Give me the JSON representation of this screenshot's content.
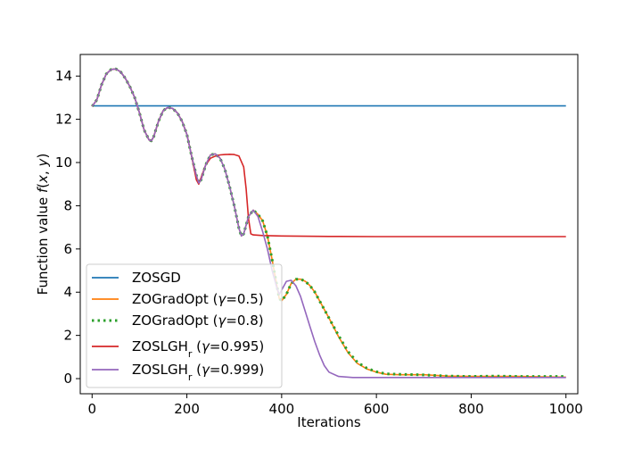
{
  "chart_data": {
    "type": "line",
    "xlabel": "Iterations",
    "ylabel": "Function value f(x, y)",
    "xlim": [
      -25,
      1025
    ],
    "ylim": [
      -0.7,
      15.0
    ],
    "xticks": [
      0,
      200,
      400,
      600,
      800,
      1000
    ],
    "yticks": [
      0,
      2,
      4,
      6,
      8,
      10,
      12,
      14
    ],
    "xtick_labels": [
      "0",
      "200",
      "400",
      "600",
      "800",
      "1000"
    ],
    "ytick_labels": [
      "0",
      "2",
      "4",
      "6",
      "8",
      "10",
      "12",
      "14"
    ],
    "grid": false,
    "legend_position": "lower-left",
    "legend": [
      {
        "label": "ZOSGD",
        "color": "#1f77b4",
        "style": "solid"
      },
      {
        "label": "ZOGradOpt (γ=0.5)",
        "color": "#ff7f0e",
        "style": "solid"
      },
      {
        "label": "ZOGradOpt (γ=0.8)",
        "color": "#2ca02c",
        "style": "dotted"
      },
      {
        "label": "ZOSLGHr (γ=0.995)",
        "color": "#d62728",
        "style": "solid"
      },
      {
        "label": "ZOSLGHr (γ=0.999)",
        "color": "#9467bd",
        "style": "solid"
      }
    ],
    "series": [
      {
        "name": "ZOSGD",
        "color": "#1f77b4",
        "style": "solid",
        "x": [
          0,
          1000
        ],
        "y": [
          12.62,
          12.62
        ]
      },
      {
        "name": "ZOGradOpt (γ=0.5)",
        "color": "#ff7f0e",
        "style": "solid",
        "x": [
          0,
          10,
          20,
          30,
          40,
          50,
          60,
          70,
          80,
          90,
          100,
          110,
          120,
          125,
          130,
          140,
          150,
          160,
          170,
          180,
          190,
          200,
          210,
          220,
          225,
          230,
          240,
          250,
          260,
          270,
          280,
          290,
          300,
          310,
          315,
          320,
          330,
          340,
          350,
          360,
          370,
          380,
          390,
          395,
          400,
          410,
          420,
          430,
          440,
          450,
          460,
          470,
          480,
          490,
          500,
          520,
          540,
          560,
          580,
          600,
          620,
          650,
          700,
          750,
          800,
          850,
          900,
          950,
          1000
        ],
        "y": [
          12.6,
          12.9,
          13.6,
          14.1,
          14.3,
          14.33,
          14.2,
          13.9,
          13.5,
          13.0,
          12.3,
          11.5,
          11.05,
          11.0,
          11.2,
          11.9,
          12.4,
          12.55,
          12.5,
          12.3,
          11.9,
          11.3,
          10.3,
          9.4,
          9.05,
          9.2,
          9.9,
          10.35,
          10.4,
          10.2,
          9.7,
          8.9,
          8.0,
          6.95,
          6.6,
          6.7,
          7.5,
          7.8,
          7.6,
          7.3,
          6.6,
          5.5,
          4.3,
          3.7,
          3.6,
          3.9,
          4.4,
          4.6,
          4.6,
          4.5,
          4.3,
          4.0,
          3.6,
          3.2,
          2.8,
          1.95,
          1.2,
          0.7,
          0.45,
          0.3,
          0.2,
          0.18,
          0.18,
          0.12,
          0.1,
          0.1,
          0.1,
          0.08,
          0.07
        ]
      },
      {
        "name": "ZOGradOpt (γ=0.8)",
        "color": "#2ca02c",
        "style": "dotted",
        "x": [
          0,
          10,
          20,
          30,
          40,
          50,
          60,
          70,
          80,
          90,
          100,
          110,
          120,
          125,
          130,
          140,
          150,
          160,
          170,
          180,
          190,
          200,
          210,
          220,
          225,
          230,
          240,
          250,
          260,
          270,
          280,
          290,
          300,
          310,
          315,
          320,
          330,
          340,
          350,
          360,
          370,
          380,
          390,
          395,
          400,
          410,
          420,
          430,
          440,
          450,
          460,
          470,
          480,
          490,
          500,
          520,
          540,
          560,
          580,
          600,
          620,
          650,
          700,
          750,
          800,
          850,
          900,
          950,
          1000
        ],
        "y": [
          12.6,
          12.9,
          13.6,
          14.1,
          14.3,
          14.33,
          14.2,
          13.9,
          13.5,
          13.0,
          12.3,
          11.5,
          11.05,
          11.0,
          11.2,
          11.9,
          12.4,
          12.55,
          12.5,
          12.3,
          11.9,
          11.3,
          10.3,
          9.4,
          9.05,
          9.2,
          9.9,
          10.35,
          10.4,
          10.2,
          9.7,
          8.9,
          8.0,
          6.95,
          6.6,
          6.7,
          7.5,
          7.8,
          7.6,
          7.3,
          6.6,
          5.5,
          4.3,
          3.7,
          3.6,
          3.9,
          4.4,
          4.6,
          4.6,
          4.5,
          4.3,
          4.0,
          3.6,
          3.2,
          2.8,
          2.0,
          1.25,
          0.75,
          0.48,
          0.32,
          0.22,
          0.2,
          0.17,
          0.12,
          0.1,
          0.12,
          0.1,
          0.1,
          0.1
        ]
      },
      {
        "name": "ZOSLGHr (γ=0.995)",
        "color": "#d62728",
        "style": "solid",
        "x": [
          0,
          10,
          20,
          30,
          40,
          50,
          60,
          70,
          80,
          90,
          100,
          110,
          120,
          125,
          130,
          140,
          150,
          160,
          170,
          180,
          190,
          200,
          210,
          220,
          225,
          230,
          240,
          250,
          260,
          270,
          280,
          290,
          300,
          310,
          320,
          325,
          330,
          335,
          340,
          360,
          400,
          500,
          600,
          700,
          800,
          900,
          1000
        ],
        "y": [
          12.6,
          12.9,
          13.6,
          14.1,
          14.3,
          14.33,
          14.2,
          13.9,
          13.5,
          13.0,
          12.3,
          11.5,
          11.05,
          11.0,
          11.2,
          11.9,
          12.4,
          12.55,
          12.5,
          12.3,
          11.9,
          11.3,
          10.3,
          9.2,
          9.0,
          9.3,
          9.9,
          10.2,
          10.3,
          10.35,
          10.37,
          10.38,
          10.37,
          10.3,
          9.8,
          8.8,
          7.4,
          6.7,
          6.65,
          6.62,
          6.6,
          6.58,
          6.57,
          6.57,
          6.57,
          6.57,
          6.57
        ]
      },
      {
        "name": "ZOSLGHr (γ=0.999)",
        "color": "#9467bd",
        "style": "solid",
        "x": [
          0,
          10,
          20,
          30,
          40,
          50,
          60,
          70,
          80,
          90,
          100,
          110,
          120,
          125,
          130,
          140,
          150,
          160,
          170,
          180,
          190,
          200,
          210,
          220,
          225,
          230,
          240,
          250,
          260,
          270,
          280,
          290,
          300,
          310,
          315,
          320,
          330,
          340,
          350,
          360,
          370,
          380,
          390,
          395,
          400,
          410,
          420,
          430,
          440,
          450,
          460,
          470,
          480,
          490,
          500,
          520,
          550,
          600,
          700,
          800,
          900,
          1000
        ],
        "y": [
          12.6,
          12.9,
          13.6,
          14.1,
          14.3,
          14.33,
          14.2,
          13.9,
          13.5,
          13.0,
          12.3,
          11.5,
          11.05,
          11.0,
          11.2,
          11.9,
          12.4,
          12.55,
          12.5,
          12.3,
          11.9,
          11.3,
          10.3,
          9.4,
          9.05,
          9.2,
          9.9,
          10.35,
          10.4,
          10.2,
          9.7,
          8.9,
          8.0,
          6.95,
          6.6,
          6.7,
          7.5,
          7.8,
          7.5,
          6.8,
          6.0,
          5.0,
          4.2,
          3.9,
          4.1,
          4.5,
          4.55,
          4.3,
          3.8,
          3.1,
          2.4,
          1.7,
          1.1,
          0.6,
          0.3,
          0.1,
          0.05,
          0.05,
          0.05,
          0.05,
          0.05,
          0.05
        ]
      }
    ]
  }
}
